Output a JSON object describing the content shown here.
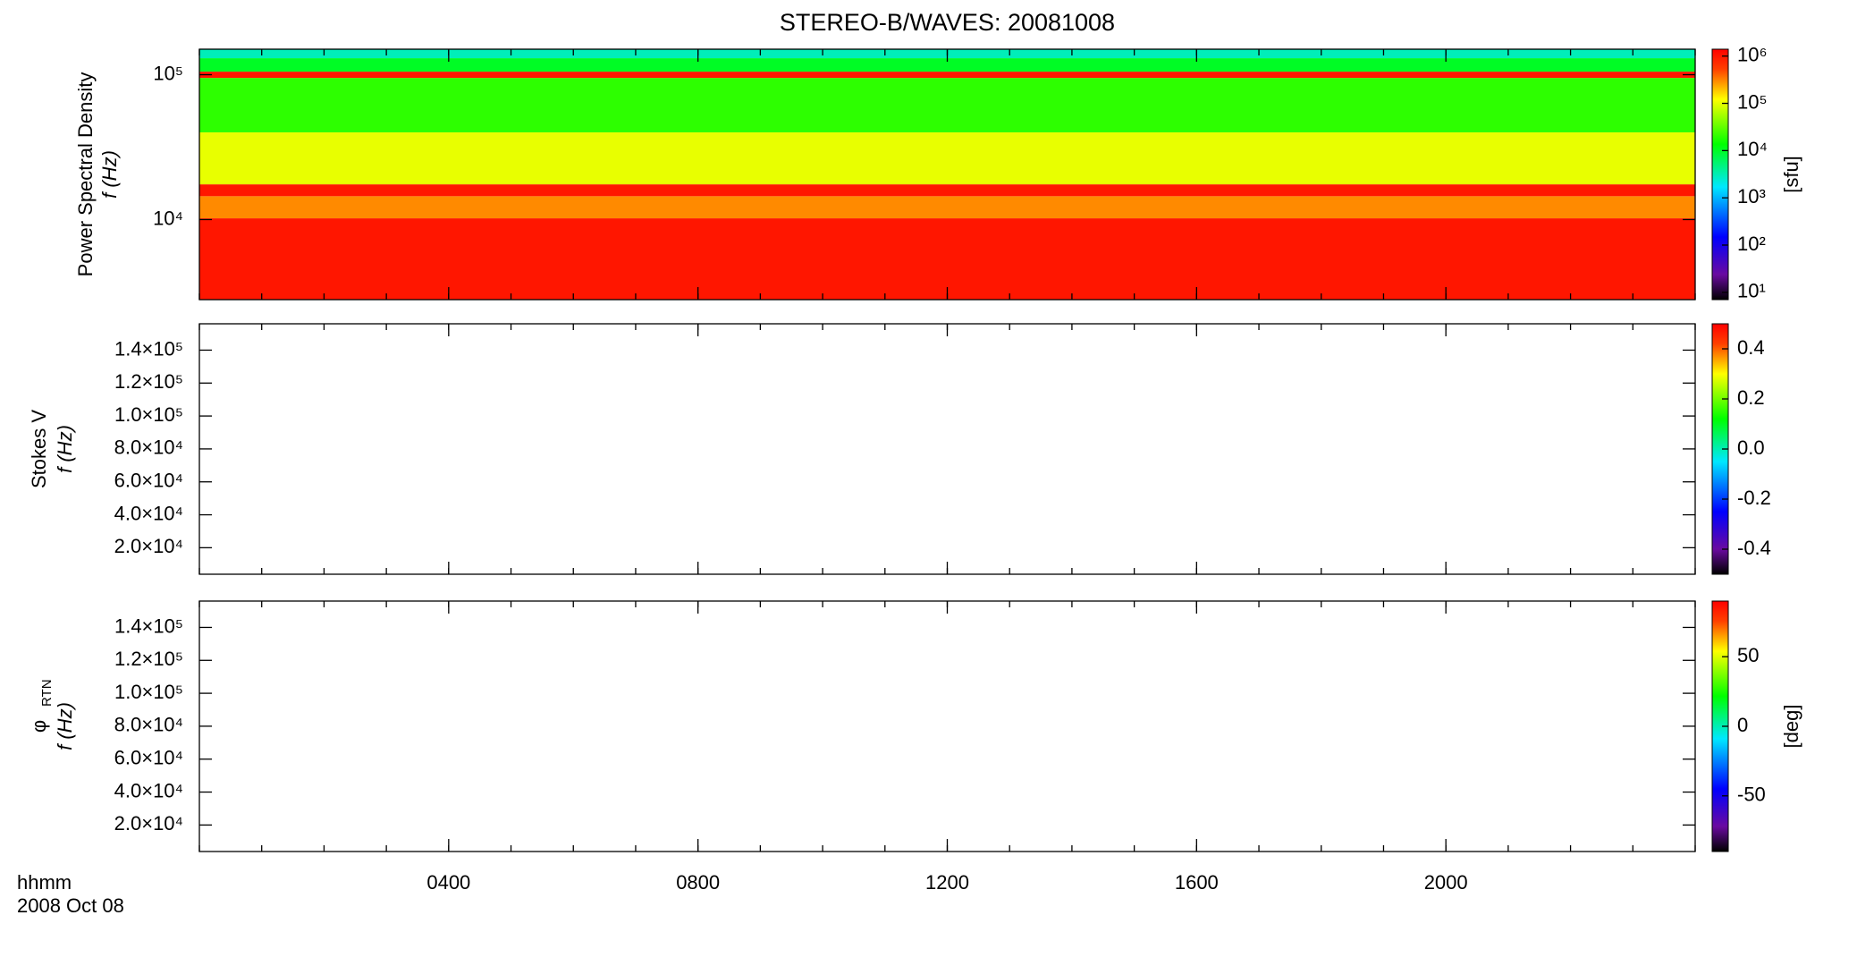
{
  "chart_data": [
    {
      "type": "heatmap",
      "title": "STEREO-B/WAVES: 20081008",
      "ylabel": "Power Spectral Density",
      "ylabel2": "f (Hz)",
      "xlim": [
        0,
        24
      ],
      "xticks": [
        {
          "value": 4,
          "label": "0400"
        },
        {
          "value": 8,
          "label": "0800"
        },
        {
          "value": 12,
          "label": "1200"
        },
        {
          "value": 16,
          "label": "1600"
        },
        {
          "value": 20,
          "label": "2000"
        }
      ],
      "ylog": true,
      "ylim": [
        2800,
        150000
      ],
      "yticks": [
        {
          "value": 10000,
          "label": "10⁴"
        },
        {
          "value": 100000,
          "label": "10⁵"
        }
      ],
      "ybins": [
        2800,
        10200,
        14500,
        17500,
        40000,
        95000,
        105000,
        130000,
        150000
      ],
      "values": [
        1000000,
        300000,
        1000000,
        100000,
        20000,
        1000000,
        10000,
        3000
      ],
      "colormap": "rainbow",
      "clog": true,
      "clim": [
        7,
        1400000
      ],
      "cticks": [
        {
          "value": 10,
          "label": "10¹"
        },
        {
          "value": 100,
          "label": "10²"
        },
        {
          "value": 1000,
          "label": "10³"
        },
        {
          "value": 10000,
          "label": "10⁴"
        },
        {
          "value": 100000,
          "label": "10⁵"
        },
        {
          "value": 1000000,
          "label": "10⁶"
        }
      ],
      "clabel": "[sfu]"
    },
    {
      "type": "heatmap",
      "ylabel": "Stokes V",
      "ylabel2": "f (Hz)",
      "xlim": [
        0,
        24
      ],
      "xticks": [
        {
          "value": 4,
          "label": "0400"
        },
        {
          "value": 8,
          "label": "0800"
        },
        {
          "value": 12,
          "label": "1200"
        },
        {
          "value": 16,
          "label": "1600"
        },
        {
          "value": 20,
          "label": "2000"
        }
      ],
      "ylog": false,
      "ylim": [
        3900,
        156000
      ],
      "yticks": [
        {
          "value": 20000,
          "label": "2.0×10⁴"
        },
        {
          "value": 40000,
          "label": "4.0×10⁴"
        },
        {
          "value": 60000,
          "label": "6.0×10⁴"
        },
        {
          "value": 80000,
          "label": "8.0×10⁴"
        },
        {
          "value": 100000,
          "label": "1.0×10⁵"
        },
        {
          "value": 120000,
          "label": "1.2×10⁵"
        },
        {
          "value": 140000,
          "label": "1.4×10⁵"
        }
      ],
      "colormap": "rainbow",
      "clog": false,
      "clim": [
        -0.5,
        0.5
      ],
      "cticks": [
        -0.4,
        -0.2,
        {
          "value": 0,
          "label": "0.0"
        },
        0.2,
        0.4
      ]
    },
    {
      "type": "heatmap",
      "ylabel": "φ",
      "ylabel_sub": "RTN",
      "ylabel2": "f (Hz)",
      "xlim": [
        0,
        24
      ],
      "xticks": [
        {
          "value": 4,
          "label": "0400"
        },
        {
          "value": 8,
          "label": "0800"
        },
        {
          "value": 12,
          "label": "1200"
        },
        {
          "value": 16,
          "label": "1600"
        },
        {
          "value": 20,
          "label": "2000"
        }
      ],
      "x_label_lines": [
        "hhmm",
        "2008 Oct 08"
      ],
      "ylog": false,
      "ylim": [
        3900,
        156000
      ],
      "yticks": [
        {
          "value": 20000,
          "label": "2.0×10⁴"
        },
        {
          "value": 40000,
          "label": "4.0×10⁴"
        },
        {
          "value": 60000,
          "label": "6.0×10⁴"
        },
        {
          "value": 80000,
          "label": "8.0×10⁴"
        },
        {
          "value": 100000,
          "label": "1.0×10⁵"
        },
        {
          "value": 120000,
          "label": "1.2×10⁵"
        },
        {
          "value": 140000,
          "label": "1.4×10⁵"
        }
      ],
      "colormap": "rainbow",
      "clog": false,
      "clim": [
        -90,
        90
      ],
      "cticks": [
        -50,
        0,
        50
      ],
      "clabel": "[deg]"
    }
  ]
}
